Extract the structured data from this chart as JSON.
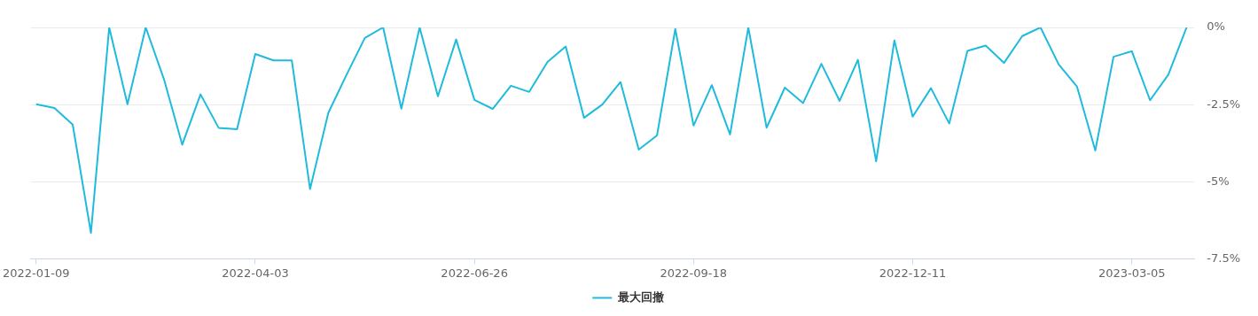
{
  "chart_data": {
    "type": "line",
    "x": [
      "2022-01-09",
      "2022-01-16",
      "2022-01-23",
      "2022-01-30",
      "2022-02-06",
      "2022-02-13",
      "2022-02-20",
      "2022-02-27",
      "2022-03-06",
      "2022-03-13",
      "2022-03-20",
      "2022-03-27",
      "2022-04-03",
      "2022-04-10",
      "2022-04-17",
      "2022-04-24",
      "2022-05-01",
      "2022-05-08",
      "2022-05-15",
      "2022-05-22",
      "2022-05-29",
      "2022-06-05",
      "2022-06-12",
      "2022-06-19",
      "2022-06-26",
      "2022-07-03",
      "2022-07-10",
      "2022-07-17",
      "2022-07-24",
      "2022-07-31",
      "2022-08-07",
      "2022-08-14",
      "2022-08-21",
      "2022-08-28",
      "2022-09-04",
      "2022-09-11",
      "2022-09-18",
      "2022-09-25",
      "2022-10-02",
      "2022-10-09",
      "2022-10-16",
      "2022-10-23",
      "2022-10-30",
      "2022-11-06",
      "2022-11-13",
      "2022-11-20",
      "2022-11-27",
      "2022-12-04",
      "2022-12-11",
      "2022-12-18",
      "2022-12-25",
      "2023-01-01",
      "2023-01-08",
      "2023-01-15",
      "2023-01-22",
      "2023-01-29",
      "2023-02-05",
      "2023-02-12",
      "2023-02-19",
      "2023-02-26",
      "2023-03-05",
      "2023-03-12",
      "2023-03-19",
      "2023-03-26"
    ],
    "series": [
      {
        "name": "最大回撤",
        "color": "#1fbbdc",
        "values": [
          -2.49,
          -2.61,
          -3.15,
          -6.66,
          0,
          -2.49,
          0,
          -1.68,
          -3.8,
          -2.17,
          -3.26,
          -3.3,
          -0.86,
          -1.07,
          -1.07,
          -5.24,
          -2.77,
          -1.53,
          -0.34,
          0,
          -2.63,
          0,
          -2.23,
          -0.39,
          -2.35,
          -2.64,
          -1.89,
          -2.09,
          -1.12,
          -0.62,
          -2.93,
          -2.5,
          -1.77,
          -3.96,
          -3.5,
          -0.05,
          -3.18,
          -1.87,
          -3.47,
          0,
          -3.25,
          -1.95,
          -2.45,
          -1.18,
          -2.38,
          -1.05,
          -4.34,
          -0.42,
          -2.89,
          -1.97,
          -3.11,
          -0.76,
          -0.59,
          -1.15,
          -0.28,
          0,
          -1.2,
          -1.92,
          -3.99,
          -0.95,
          -0.77,
          -2.36,
          -1.53,
          0
        ]
      }
    ],
    "xlim": [
      "2022-01-07",
      "2023-03-29"
    ],
    "xticks": [
      "2022-01-09",
      "2022-04-03",
      "2022-06-26",
      "2022-09-18",
      "2022-12-11",
      "2023-03-05"
    ],
    "ylim": [
      -7.5,
      0
    ],
    "yticks": [
      {
        "value": 0,
        "label": "0%"
      },
      {
        "value": -2.5,
        "label": "-2.5%"
      },
      {
        "value": -5,
        "label": "-5%"
      },
      {
        "value": -7.5,
        "label": "-7.5%"
      }
    ],
    "grid": "y",
    "legend": "bottom",
    "marker": "none",
    "line_style": "solid"
  }
}
